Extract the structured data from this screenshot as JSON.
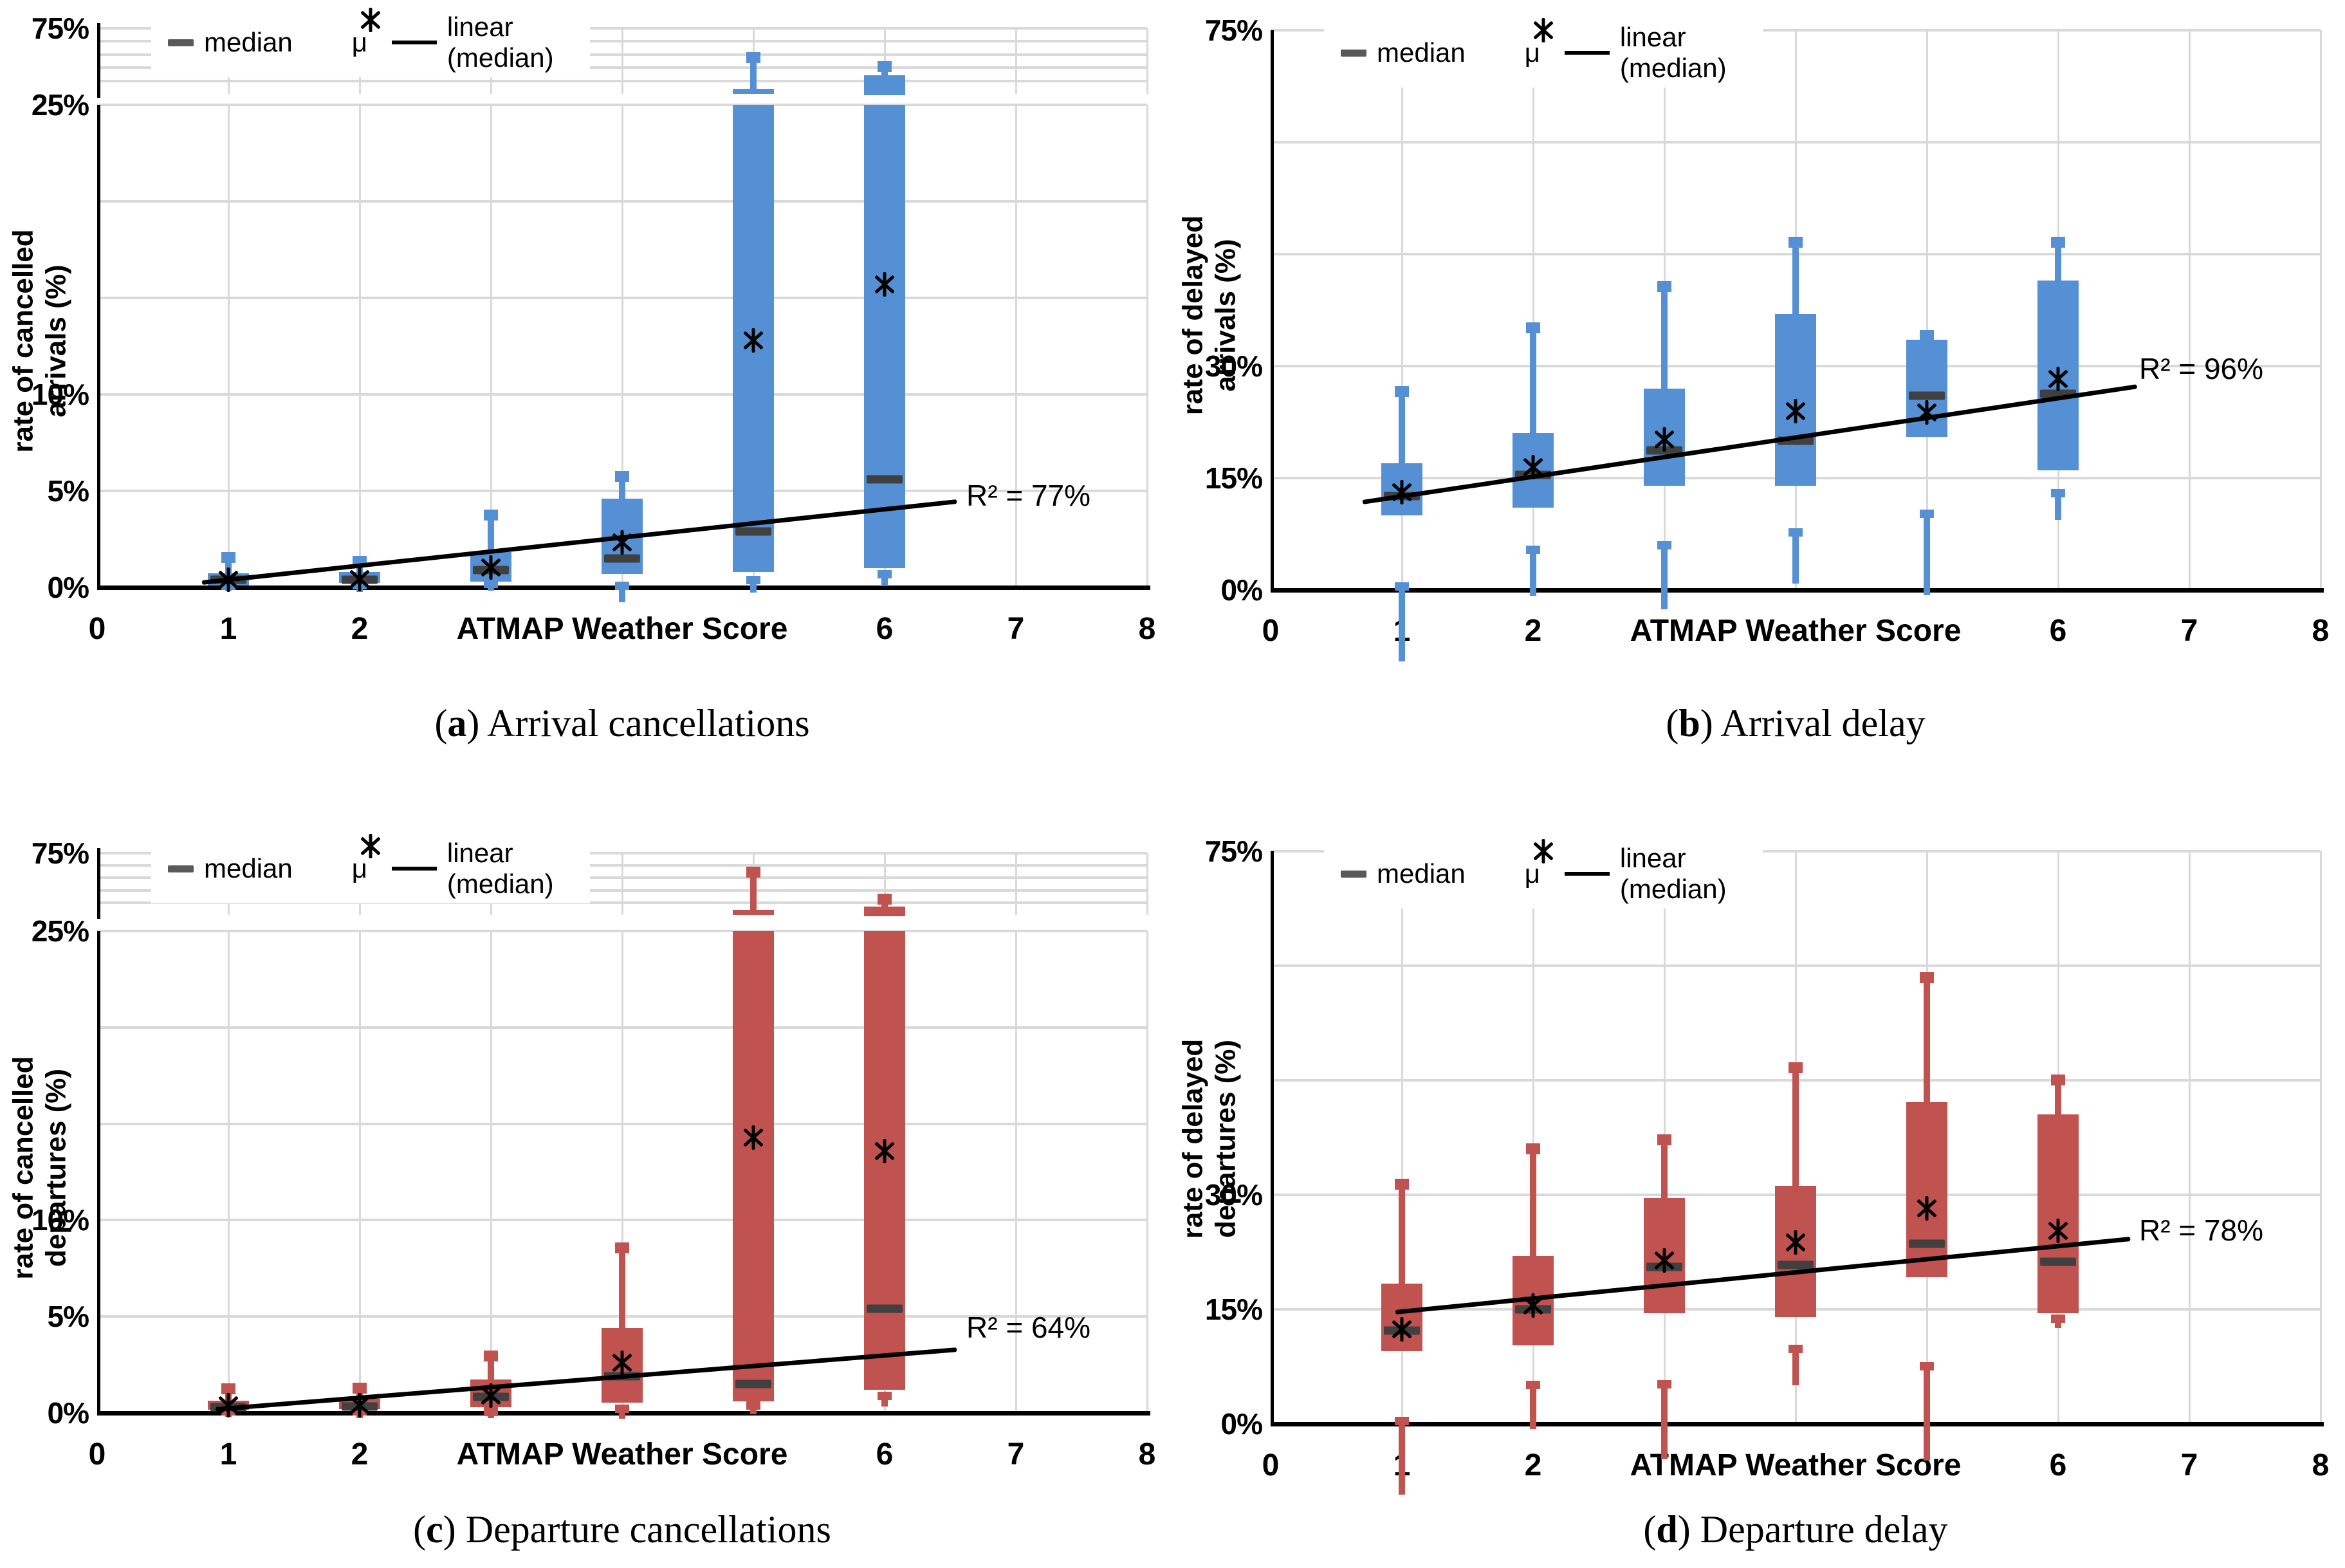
{
  "figure": {
    "paren_open": "(",
    "paren_close": ")",
    "legend": {
      "median": "median",
      "mu": "μ",
      "linear": "linear (median)"
    },
    "colors": {
      "blue": "#5590D5",
      "red": "#C05250",
      "median_dash": "#404040",
      "legend_dash": "#595959",
      "gridline": "#D9D9D9",
      "axis": "#000000",
      "trend": "#000000"
    }
  },
  "chart_data": [
    {
      "panel": "a",
      "type": "box",
      "caption_letter": "a",
      "caption": " Arrival cancellations",
      "ylabel_line1": "rate of cancelled",
      "ylabel_line2": "arrivals (%)",
      "xlabel": "ATMAP Weather Score",
      "r2": "R² = 77%",
      "color_key": "blue",
      "y_axis": {
        "broken": true,
        "main_range": [
          0,
          25
        ],
        "main_grid_step": 5,
        "upper_range": [
          25,
          75
        ],
        "upper_grid_step": 10,
        "tick_labels": [
          {
            "v": 75,
            "t": "75%"
          },
          {
            "v": 25,
            "t": "25%"
          },
          {
            "v": 10,
            "t": "10%"
          },
          {
            "v": 5,
            "t": "5%"
          },
          {
            "v": 0,
            "t": "0%"
          }
        ]
      },
      "x_axis": {
        "range": [
          0,
          8
        ],
        "title_at": 4,
        "ticks": [
          {
            "v": 0,
            "t": "0"
          },
          {
            "v": 1,
            "t": "1"
          },
          {
            "v": 2,
            "t": "2"
          },
          {
            "v": 6,
            "t": "6"
          },
          {
            "v": 7,
            "t": "7"
          },
          {
            "v": 8,
            "t": "8"
          }
        ]
      },
      "boxes": [
        {
          "x": 1,
          "whisker_low": 0,
          "q1": 0.1,
          "median": 0.4,
          "mean": 0.4,
          "q3": 0.75,
          "whisker_high": 1.7
        },
        {
          "x": 2,
          "whisker_low": 0.05,
          "q1": 0.25,
          "median": 0.4,
          "mean": 0.45,
          "q3": 0.8,
          "whisker_high": 1.5
        },
        {
          "x": 3,
          "whisker_low": 0.1,
          "q1": 0.3,
          "median": 0.9,
          "mean": 1.05,
          "q3": 1.85,
          "whisker_high": 3.9
        },
        {
          "x": 4,
          "whisker_low": 0,
          "q1": 0.7,
          "median": 1.5,
          "mean": 2.35,
          "q3": 4.6,
          "whisker_high": 5.9
        },
        {
          "x": 5,
          "whisker_low": 0.3,
          "q1": 0.8,
          "median": 2.9,
          "mean": 12.8,
          "q3": 26,
          "whisker_high": 55
        },
        {
          "x": 6,
          "whisker_low": 0.6,
          "q1": 1.0,
          "median": 5.6,
          "mean": 15.7,
          "q3": 39,
          "whisker_high": 48
        }
      ],
      "trend": {
        "x1": 0.8,
        "v1": 0.25,
        "x2": 6.55,
        "v2": 4.45
      }
    },
    {
      "panel": "b",
      "type": "box",
      "caption_letter": "b",
      "caption": " Arrival delay",
      "ylabel_line1": "rate of delayed",
      "ylabel_line2": "arrivals (%)",
      "xlabel": "ATMAP Weather Score",
      "r2": "R² = 96%",
      "color_key": "blue",
      "y_axis": {
        "broken": false,
        "main_range": [
          0,
          75
        ],
        "main_grid_step": 15,
        "tick_labels": [
          {
            "v": 75,
            "t": "75%"
          },
          {
            "v": 30,
            "t": "30%"
          },
          {
            "v": 15,
            "t": "15%"
          },
          {
            "v": 0,
            "t": "0%"
          }
        ]
      },
      "x_axis": {
        "range": [
          0,
          8
        ],
        "title_at": 4,
        "ticks": [
          {
            "v": 0,
            "t": "0"
          },
          {
            "v": 1,
            "t": "1"
          },
          {
            "v": 2,
            "t": "2"
          },
          {
            "v": 6,
            "t": "6"
          },
          {
            "v": 7,
            "t": "7"
          },
          {
            "v": 8,
            "t": "8"
          }
        ]
      },
      "boxes": [
        {
          "x": 1,
          "whisker_low": 0.3,
          "q1": 10,
          "median": 12.6,
          "mean": 13.1,
          "q3": 17,
          "whisker_high": 27
        },
        {
          "x": 2,
          "whisker_low": 5.2,
          "q1": 11,
          "median": 15.4,
          "mean": 16.5,
          "q3": 21,
          "whisker_high": 35.5
        },
        {
          "x": 3,
          "whisker_low": 5.8,
          "q1": 14,
          "median": 18.7,
          "mean": 20.2,
          "q3": 27,
          "whisker_high": 41
        },
        {
          "x": 4,
          "whisker_low": 7.5,
          "q1": 14,
          "median": 20,
          "mean": 24,
          "q3": 37,
          "whisker_high": 47
        },
        {
          "x": 5,
          "whisker_low": 10,
          "q1": 20.5,
          "median": 26,
          "mean": 23.8,
          "q3": 33.5,
          "whisker_high": 34.5
        },
        {
          "x": 6,
          "whisker_low": 12.8,
          "q1": 16,
          "median": 26.3,
          "mean": 28.3,
          "q3": 41.5,
          "whisker_high": 47
        }
      ],
      "trend": {
        "x1": 0.7,
        "v1": 11.8,
        "x2": 6.6,
        "v2": 27.3
      }
    },
    {
      "panel": "c",
      "type": "box",
      "caption_letter": "c",
      "caption": " Departure cancellations",
      "ylabel_line1": "rate of cancelled",
      "ylabel_line2": "departures (%)",
      "xlabel": "ATMAP Weather Score",
      "r2": "R² = 64%",
      "color_key": "red",
      "y_axis": {
        "broken": true,
        "main_range": [
          0,
          25
        ],
        "main_grid_step": 5,
        "upper_range": [
          25,
          75
        ],
        "upper_grid_step": 10,
        "tick_labels": [
          {
            "v": 75,
            "t": "75%"
          },
          {
            "v": 25,
            "t": "25%"
          },
          {
            "v": 10,
            "t": "10%"
          },
          {
            "v": 5,
            "t": "5%"
          },
          {
            "v": 0,
            "t": "0%"
          }
        ]
      },
      "x_axis": {
        "range": [
          0,
          8
        ],
        "title_at": 4,
        "ticks": [
          {
            "v": 0,
            "t": "0"
          },
          {
            "v": 1,
            "t": "1"
          },
          {
            "v": 2,
            "t": "2"
          },
          {
            "v": 6,
            "t": "6"
          },
          {
            "v": 7,
            "t": "7"
          },
          {
            "v": 8,
            "t": "8"
          }
        ]
      },
      "boxes": [
        {
          "x": 1,
          "whisker_low": 0,
          "q1": 0.15,
          "median": 0.3,
          "mean": 0.4,
          "q3": 0.65,
          "whisker_high": 1.4
        },
        {
          "x": 2,
          "whisker_low": 0,
          "q1": 0.2,
          "median": 0.35,
          "mean": 0.4,
          "q3": 0.75,
          "whisker_high": 1.45
        },
        {
          "x": 3,
          "whisker_low": 0.05,
          "q1": 0.3,
          "median": 0.85,
          "mean": 0.9,
          "q3": 1.75,
          "whisker_high": 3.1
        },
        {
          "x": 4,
          "whisker_low": 0.15,
          "q1": 0.55,
          "median": 1.9,
          "mean": 2.6,
          "q3": 4.4,
          "whisker_high": 8.7
        },
        {
          "x": 5,
          "whisker_low": 0.3,
          "q1": 0.6,
          "median": 1.5,
          "mean": 14.3,
          "q3": 28,
          "whisker_high": 62
        },
        {
          "x": 6,
          "whisker_low": 0.8,
          "q1": 1.2,
          "median": 5.4,
          "mean": 13.6,
          "q3": 32,
          "whisker_high": 40
        }
      ],
      "trend": {
        "x1": 0.9,
        "v1": 0.2,
        "x2": 6.55,
        "v2": 3.3
      }
    },
    {
      "panel": "d",
      "type": "box",
      "caption_letter": "d",
      "caption": " Departure delay",
      "ylabel_line1": "rate of delayed",
      "ylabel_line2": "departures (%)",
      "xlabel": "ATMAP Weather Score",
      "r2": "R² = 78%",
      "color_key": "red",
      "y_axis": {
        "broken": false,
        "main_range": [
          0,
          75
        ],
        "main_grid_step": 15,
        "tick_labels": [
          {
            "v": 75,
            "t": "75%"
          },
          {
            "v": 30,
            "t": "30%"
          },
          {
            "v": 15,
            "t": "15%"
          },
          {
            "v": 0,
            "t": "0%"
          }
        ]
      },
      "x_axis": {
        "range": [
          0,
          8
        ],
        "title_at": 4,
        "ticks": [
          {
            "v": 0,
            "t": "0"
          },
          {
            "v": 1,
            "t": "1"
          },
          {
            "v": 2,
            "t": "2"
          },
          {
            "v": 6,
            "t": "6"
          },
          {
            "v": 7,
            "t": "7"
          },
          {
            "v": 8,
            "t": "8"
          }
        ]
      },
      "boxes": [
        {
          "x": 1,
          "whisker_low": 0.2,
          "q1": 9.5,
          "median": 12.2,
          "mean": 12.4,
          "q3": 18.4,
          "whisker_high": 31.8
        },
        {
          "x": 2,
          "whisker_low": 4.9,
          "q1": 10.3,
          "median": 15.0,
          "mean": 15.5,
          "q3": 22,
          "whisker_high": 36.4
        },
        {
          "x": 3,
          "whisker_low": 5.0,
          "q1": 14.5,
          "median": 20.6,
          "mean": 21.4,
          "q3": 29.6,
          "whisker_high": 37.6
        },
        {
          "x": 4,
          "whisker_low": 9.6,
          "q1": 14,
          "median": 20.8,
          "mean": 23.8,
          "q3": 31.2,
          "whisker_high": 47
        },
        {
          "x": 5,
          "whisker_low": 7.3,
          "q1": 19.2,
          "median": 23.6,
          "mean": 28.2,
          "q3": 42.1,
          "whisker_high": 58.8
        },
        {
          "x": 6,
          "whisker_low": 13.6,
          "q1": 14.5,
          "median": 21.2,
          "mean": 25.3,
          "q3": 40.5,
          "whisker_high": 45.4
        }
      ],
      "trend": {
        "x1": 0.95,
        "v1": 14.6,
        "x2": 6.55,
        "v2": 24.2
      }
    }
  ]
}
